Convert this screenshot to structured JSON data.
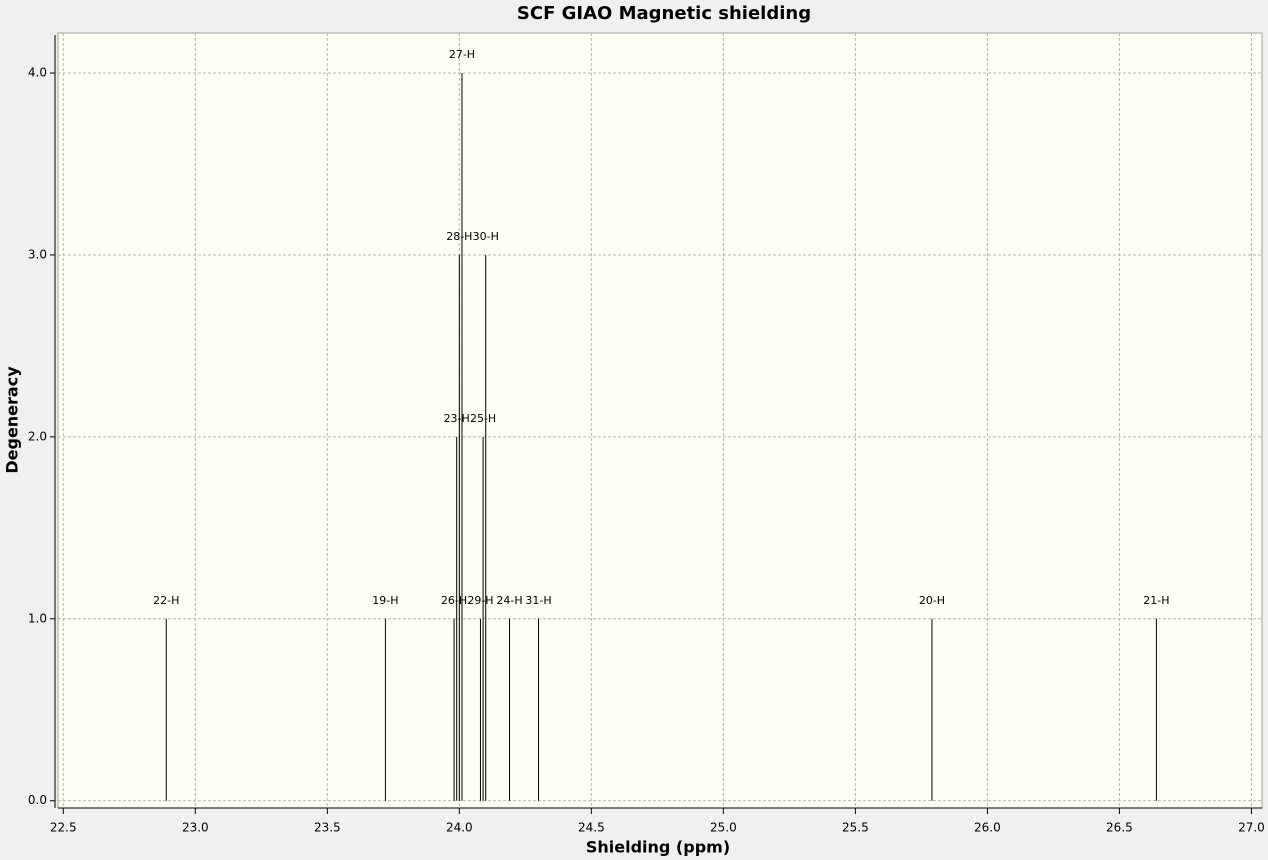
{
  "chart_data": {
    "type": "stick",
    "title": "SCF GIAO Magnetic shielding",
    "x_label": "Shielding (ppm)",
    "y_label": "Degeneracy",
    "x": [
      22.89,
      23.72,
      23.98,
      23.99,
      24.0,
      24.01,
      24.08,
      24.09,
      24.1,
      24.19,
      24.3,
      25.79,
      26.64
    ],
    "values": [
      1,
      1,
      1,
      2,
      3,
      4,
      1,
      2,
      3,
      1,
      1,
      1,
      1
    ],
    "labels": [
      "22-H",
      "19-H",
      "26-H",
      "23-H",
      "28-H",
      "27-H",
      "29-H",
      "25-H",
      "30-H",
      "24-H",
      "31-H",
      "20-H",
      "21-H"
    ],
    "color": "#000000",
    "xlim": [
      22.48,
      27.04
    ],
    "ylim": [
      -0.04,
      4.22
    ],
    "xticks": [
      22.5,
      {
        "value": 23,
        "label": "23.0"
      },
      23.5,
      {
        "value": 24,
        "label": "24.0"
      },
      24.5,
      {
        "value": 25,
        "label": "25.0"
      },
      25.5,
      {
        "value": 26,
        "label": "26.0"
      },
      26.5,
      {
        "value": 27,
        "label": "27.0"
      }
    ],
    "yticks": [
      {
        "value": 0,
        "label": "0.0"
      },
      {
        "value": 1,
        "label": "1.0"
      },
      {
        "value": 2,
        "label": "2.0"
      },
      {
        "value": 3,
        "label": "3.0"
      },
      {
        "value": 4,
        "label": "4.0"
      }
    ],
    "grid": true
  }
}
